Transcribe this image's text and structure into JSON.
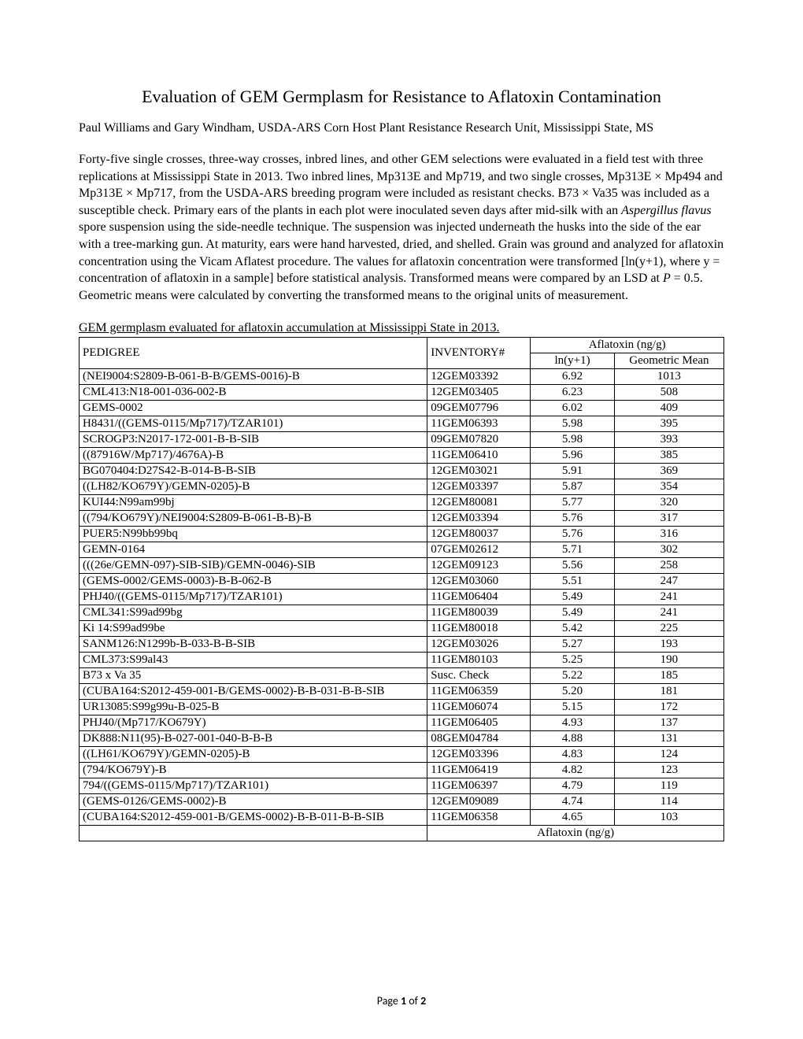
{
  "title": "Evaluation of GEM Germplasm for Resistance to Aflatoxin Contamination",
  "authors": "Paul Williams and Gary Windham, USDA-ARS Corn Host Plant Resistance Research Unit, Mississippi State, MS",
  "body_pre_italic": "Forty-five single crosses, three-way crosses, inbred lines, and other GEM selections were evaluated in a field test with three replications at Mississippi State in 2013. Two inbred lines, Mp313E and Mp719, and two single crosses, Mp313E × Mp494 and Mp313E × Mp717, from the USDA-ARS breeding program were included as resistant checks. B73 × Va35 was included as a susceptible check. Primary ears of the plants in each plot were inoculated seven days after mid-silk with an ",
  "body_italic1": "Aspergillus flavus",
  "body_mid1": " spore suspension using the side-needle technique. The suspension was injected underneath the husks into the side of the ear with a tree-marking gun. At maturity, ears were hand harvested, dried, and shelled. Grain was ground and analyzed for aflatoxin concentration using the Vicam Aflatest procedure. The values for aflatoxin concentration were transformed [ln(y+1), where y = concentration of aflatoxin in a sample] before statistical analysis. Transformed means were compared by an LSD at ",
  "body_italic2": "P",
  "body_post": " = 0.5. Geometric means were calculated by converting the transformed means to the original units of measurement.",
  "table_caption": "GEM germplasm evaluated for aflatoxin accumulation at Mississippi State in 2013.",
  "headers": {
    "aflatoxin_span": "Aflatoxin (ng/g)",
    "pedigree": "PEDIGREE",
    "inventory": "INVENTORY#",
    "ln": "ln(y+1)",
    "geo": "Geometric Mean"
  },
  "rows": [
    {
      "pedigree": "(NEI9004:S2809-B-061-B-B/GEMS-0016)-B",
      "inventory": "12GEM03392",
      "ln": "6.92",
      "geo": "1013"
    },
    {
      "pedigree": "CML413:N18-001-036-002-B",
      "inventory": "12GEM03405",
      "ln": "6.23",
      "geo": "508"
    },
    {
      "pedigree": "GEMS-0002",
      "inventory": "09GEM07796",
      "ln": "6.02",
      "geo": "409"
    },
    {
      "pedigree": "H8431/((GEMS-0115/Mp717)/TZAR101)",
      "inventory": "11GEM06393",
      "ln": "5.98",
      "geo": "395"
    },
    {
      "pedigree": "SCROGP3:N2017-172-001-B-B-SIB",
      "inventory": "09GEM07820",
      "ln": "5.98",
      "geo": "393"
    },
    {
      "pedigree": "((87916W/Mp717)/4676A)-B",
      "inventory": "11GEM06410",
      "ln": "5.96",
      "geo": "385"
    },
    {
      "pedigree": "BG070404:D27S42-B-014-B-B-SIB",
      "inventory": "12GEM03021",
      "ln": "5.91",
      "geo": "369"
    },
    {
      "pedigree": "((LH82/KO679Y)/GEMN-0205)-B",
      "inventory": "12GEM03397",
      "ln": "5.87",
      "geo": "354"
    },
    {
      "pedigree": "KUI44:N99am99bj",
      "inventory": "12GEM80081",
      "ln": "5.77",
      "geo": "320"
    },
    {
      "pedigree": "((794/KO679Y)/NEI9004:S2809-B-061-B-B)-B",
      "inventory": "12GEM03394",
      "ln": "5.76",
      "geo": "317"
    },
    {
      "pedigree": "PUER5:N99bb99bq",
      "inventory": "12GEM80037",
      "ln": "5.76",
      "geo": "316"
    },
    {
      "pedigree": "GEMN-0164",
      "inventory": "07GEM02612",
      "ln": "5.71",
      "geo": "302"
    },
    {
      "pedigree": "(((26e/GEMN-097)-SIB-SIB)/GEMN-0046)-SIB",
      "inventory": "12GEM09123",
      "ln": "5.56",
      "geo": "258"
    },
    {
      "pedigree": "(GEMS-0002/GEMS-0003)-B-B-062-B",
      "inventory": "12GEM03060",
      "ln": "5.51",
      "geo": "247"
    },
    {
      "pedigree": "PHJ40/((GEMS-0115/Mp717)/TZAR101)",
      "inventory": "11GEM06404",
      "ln": "5.49",
      "geo": "241"
    },
    {
      "pedigree": "CML341:S99ad99bg",
      "inventory": "11GEM80039",
      "ln": "5.49",
      "geo": "241"
    },
    {
      "pedigree": "Ki 14:S99ad99be",
      "inventory": "11GEM80018",
      "ln": "5.42",
      "geo": "225"
    },
    {
      "pedigree": "SANM126:N1299b-B-033-B-B-SIB",
      "inventory": "12GEM03026",
      "ln": "5.27",
      "geo": "193"
    },
    {
      "pedigree": "CML373:S99al43",
      "inventory": "11GEM80103",
      "ln": "5.25",
      "geo": "190"
    },
    {
      "pedigree": "B73 x Va 35",
      "inventory": "Susc. Check",
      "ln": "5.22",
      "geo": "185"
    },
    {
      "pedigree": "(CUBA164:S2012-459-001-B/GEMS-0002)-B-B-031-B-B-SIB",
      "inventory": "11GEM06359",
      "ln": "5.20",
      "geo": "181"
    },
    {
      "pedigree": "UR13085:S99g99u-B-025-B",
      "inventory": "11GEM06074",
      "ln": "5.15",
      "geo": "172"
    },
    {
      "pedigree": "PHJ40/(Mp717/KO679Y)",
      "inventory": "11GEM06405",
      "ln": "4.93",
      "geo": "137"
    },
    {
      "pedigree": "DK888:N11(95)-B-027-001-040-B-B-B",
      "inventory": "08GEM04784",
      "ln": "4.88",
      "geo": "131"
    },
    {
      "pedigree": "((LH61/KO679Y)/GEMN-0205)-B",
      "inventory": "12GEM03396",
      "ln": "4.83",
      "geo": "124"
    },
    {
      "pedigree": "(794/KO679Y)-B",
      "inventory": "11GEM06419",
      "ln": "4.82",
      "geo": "123"
    },
    {
      "pedigree": "794/((GEMS-0115/Mp717)/TZAR101)",
      "inventory": "11GEM06397",
      "ln": "4.79",
      "geo": "119"
    },
    {
      "pedigree": "(GEMS-0126/GEMS-0002)-B",
      "inventory": "12GEM09089",
      "ln": "4.74",
      "geo": "114"
    },
    {
      "pedigree": "(CUBA164:S2012-459-001-B/GEMS-0002)-B-B-011-B-B-SIB",
      "inventory": "11GEM06358",
      "ln": "4.65",
      "geo": "103"
    }
  ],
  "footer": {
    "page_label": "Page ",
    "page_num": "1",
    "of_label": " of ",
    "total": "2"
  },
  "style": {
    "page_bg": "#ffffff",
    "text_color": "#000000",
    "border_color": "#000000",
    "font_family_body": "Times New Roman",
    "font_family_footer": "Calibri",
    "title_fontsize": 22,
    "body_fontsize": 16,
    "table_fontsize": 15,
    "col_widths_pct": [
      54,
      16,
      13,
      17
    ],
    "col_alignment": [
      "left",
      "left",
      "center",
      "center"
    ]
  }
}
